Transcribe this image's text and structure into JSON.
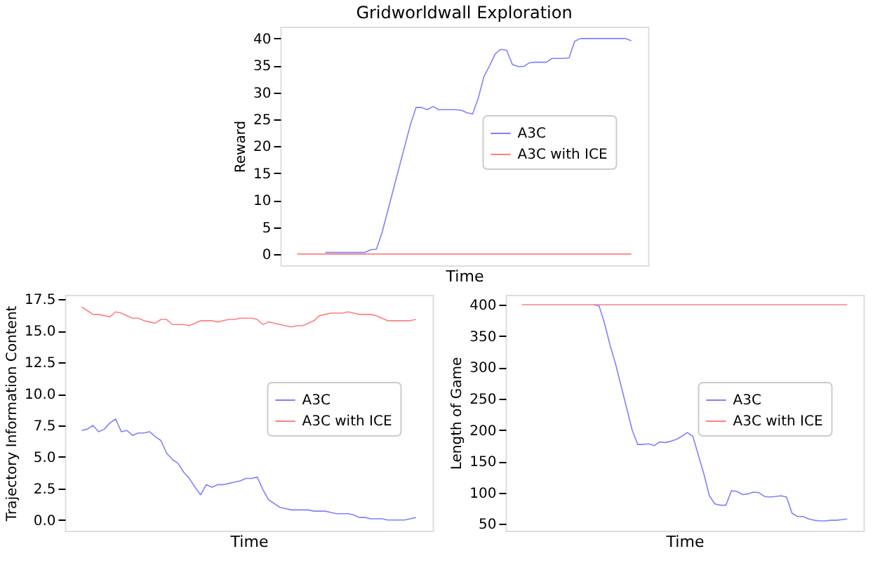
{
  "chart_data": [
    {
      "type": "line",
      "title": "Gridworldwall Exploration",
      "xlabel": "Time",
      "ylabel": "Reward",
      "categories": [
        null,
        null,
        null,
        null,
        null,
        null,
        null,
        null,
        null,
        null,
        null,
        null,
        null,
        null,
        null,
        null,
        null,
        null,
        null,
        null,
        null,
        null,
        null,
        null,
        null,
        null,
        null,
        null,
        null,
        null,
        null,
        null,
        null,
        null,
        null,
        null,
        null,
        null,
        null,
        null,
        null,
        null,
        null,
        null,
        null,
        null,
        null,
        null,
        null,
        null,
        null,
        null,
        null,
        null,
        null,
        null,
        null,
        null,
        null,
        null
      ],
      "series": [
        {
          "name": "A3C",
          "color": "#8080ff",
          "values": [
            null,
            null,
            null,
            null,
            null,
            0.3,
            0.3,
            0.3,
            0.3,
            0.3,
            0.3,
            0.3,
            0.3,
            0.8,
            0.9,
            4,
            8,
            12,
            16,
            20,
            24,
            27.2,
            27.2,
            26.8,
            27.4,
            26.8,
            26.8,
            26.8,
            26.8,
            26.7,
            26.2,
            26,
            29,
            33,
            35,
            37.2,
            38,
            37.8,
            35.2,
            34.8,
            34.8,
            35.5,
            35.6,
            35.6,
            35.6,
            36.3,
            36.3,
            36.3,
            36.4,
            39.5,
            40,
            40,
            40,
            40,
            40,
            40,
            40,
            40,
            40,
            39.6
          ]
        },
        {
          "name": "A3C with ICE",
          "color": "#ff8080",
          "values": [
            0,
            0,
            0,
            0,
            0,
            0,
            0,
            0,
            0,
            0,
            0,
            0,
            0,
            0,
            0,
            0,
            0,
            0,
            0,
            0,
            0,
            0,
            0,
            0,
            0,
            0,
            0,
            0,
            0,
            0,
            0,
            0,
            0,
            0,
            0,
            0,
            0,
            0,
            0,
            0,
            0,
            0,
            0,
            0,
            0,
            0,
            0,
            0,
            0,
            0,
            0,
            0,
            0,
            0,
            0,
            0,
            0,
            0,
            0,
            0
          ]
        }
      ],
      "ylim": [
        -2.1,
        42.2
      ],
      "yticks": [
        0,
        5,
        10,
        15,
        20,
        25,
        30,
        35,
        40
      ],
      "grid": false,
      "legend": "center right",
      "tick_labels": "y"
    },
    {
      "type": "line",
      "xlabel": "Time",
      "ylabel": "Trajectory Information Content",
      "categories": [
        null,
        null,
        null,
        null,
        null,
        null,
        null,
        null,
        null,
        null,
        null,
        null,
        null,
        null,
        null,
        null,
        null,
        null,
        null,
        null,
        null,
        null,
        null,
        null,
        null,
        null,
        null,
        null,
        null,
        null,
        null,
        null,
        null,
        null,
        null,
        null,
        null,
        null,
        null,
        null,
        null,
        null,
        null,
        null,
        null,
        null,
        null,
        null,
        null,
        null,
        null,
        null,
        null,
        null,
        null,
        null,
        null,
        null,
        null,
        null
      ],
      "series": [
        {
          "name": "A3C",
          "color": "#8080ff",
          "values": [
            7.1,
            7.2,
            7.5,
            7.0,
            7.2,
            7.7,
            8.0,
            7.0,
            7.1,
            6.7,
            6.9,
            6.9,
            7.0,
            6.6,
            6.3,
            5.3,
            4.8,
            4.5,
            3.8,
            3.3,
            2.6,
            2.0,
            2.8,
            2.6,
            2.8,
            2.8,
            2.9,
            3.0,
            3.1,
            3.3,
            3.3,
            3.4,
            2.4,
            1.6,
            1.3,
            1.0,
            0.9,
            0.8,
            0.8,
            0.8,
            0.8,
            0.7,
            0.7,
            0.7,
            0.6,
            0.5,
            0.5,
            0.5,
            0.4,
            0.2,
            0.2,
            0.1,
            0.1,
            0.1,
            0.0,
            0.0,
            0.0,
            0.0,
            0.1,
            0.2
          ]
        },
        {
          "name": "A3C with ICE",
          "color": "#ff8080",
          "values": [
            16.9,
            16.6,
            16.3,
            16.3,
            16.2,
            16.1,
            16.5,
            16.4,
            16.2,
            16.0,
            16.0,
            15.8,
            15.7,
            15.6,
            15.9,
            15.9,
            15.5,
            15.5,
            15.5,
            15.4,
            15.6,
            15.8,
            15.8,
            15.8,
            15.7,
            15.8,
            15.9,
            15.9,
            16.0,
            16.0,
            16.0,
            15.9,
            15.5,
            15.7,
            15.6,
            15.5,
            15.4,
            15.3,
            15.4,
            15.4,
            15.6,
            15.8,
            16.2,
            16.3,
            16.4,
            16.4,
            16.4,
            16.5,
            16.4,
            16.3,
            16.3,
            16.3,
            16.2,
            16.0,
            15.8,
            15.8,
            15.8,
            15.8,
            15.8,
            15.9
          ]
        }
      ],
      "ylim": [
        -0.85,
        17.85
      ],
      "yticks": [
        {
          "value": 0,
          "label": "0.0"
        },
        {
          "value": 2.5,
          "label": "2.5"
        },
        {
          "value": 5,
          "label": "5.0"
        },
        {
          "value": 7.5,
          "label": "7.5"
        },
        {
          "value": 10,
          "label": "10.0"
        },
        {
          "value": 12.5,
          "label": "12.5"
        },
        {
          "value": 15,
          "label": "15.0"
        },
        {
          "value": 17.5,
          "label": "17.5"
        }
      ],
      "grid": false,
      "legend": "center right",
      "tick_labels": "y"
    },
    {
      "type": "line",
      "xlabel": "Time",
      "ylabel": "Length of Game",
      "categories": [
        null,
        null,
        null,
        null,
        null,
        null,
        null,
        null,
        null,
        null,
        null,
        null,
        null,
        null,
        null,
        null,
        null,
        null,
        null,
        null,
        null,
        null,
        null,
        null,
        null,
        null,
        null,
        null,
        null,
        null,
        null,
        null,
        null,
        null,
        null,
        null,
        null,
        null,
        null,
        null,
        null,
        null,
        null,
        null,
        null,
        null,
        null,
        null,
        null,
        null,
        null,
        null,
        null,
        null,
        null,
        null,
        null,
        null,
        null,
        null
      ],
      "series": [
        {
          "name": "A3C",
          "color": "#8080ff",
          "values": [
            null,
            null,
            null,
            null,
            null,
            null,
            null,
            null,
            null,
            null,
            null,
            null,
            null,
            400,
            398,
            370,
            335,
            305,
            270,
            235,
            200,
            177,
            177,
            178,
            175,
            181,
            180,
            182,
            185,
            190,
            196,
            190,
            160,
            130,
            95,
            82,
            80,
            80,
            103,
            102,
            97,
            98,
            101,
            100,
            94,
            93,
            94,
            95,
            93,
            67,
            62,
            62,
            58,
            56,
            55,
            55,
            56,
            56,
            57,
            58
          ]
        },
        {
          "name": "A3C with ICE",
          "color": "#ff8080",
          "values": [
            400,
            400,
            400,
            400,
            400,
            400,
            400,
            400,
            400,
            400,
            400,
            400,
            400,
            400,
            400,
            400,
            400,
            400,
            400,
            400,
            400,
            400,
            400,
            400,
            400,
            400,
            400,
            400,
            400,
            400,
            400,
            400,
            400,
            400,
            400,
            400,
            400,
            400,
            400,
            400,
            400,
            400,
            400,
            400,
            400,
            400,
            400,
            400,
            400,
            400,
            400,
            400,
            400,
            400,
            400,
            400,
            400,
            400,
            400,
            400
          ]
        }
      ],
      "ylim": [
        39.3,
        415.7
      ],
      "yticks": [
        50,
        100,
        150,
        200,
        250,
        300,
        350,
        400
      ],
      "grid": false,
      "legend": "center right",
      "tick_labels": "y"
    }
  ]
}
